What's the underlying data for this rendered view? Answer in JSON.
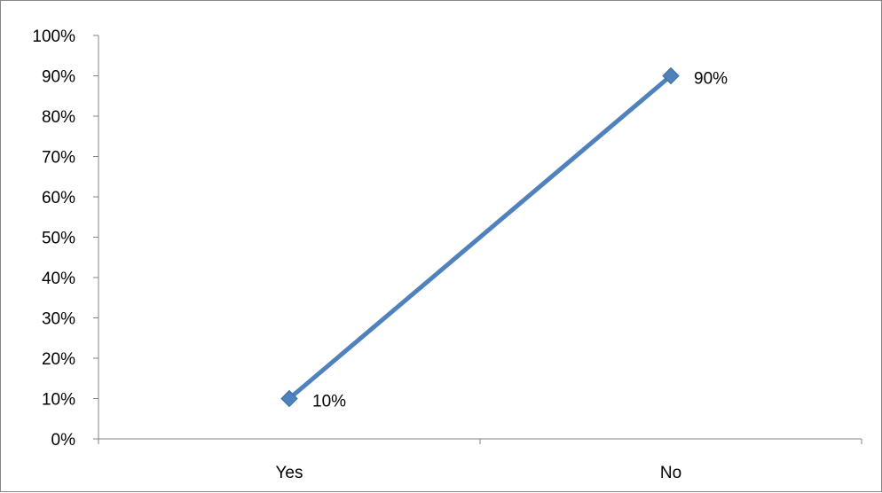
{
  "chart_data": {
    "type": "line",
    "categories": [
      "Yes",
      "No"
    ],
    "series": [
      {
        "values": [
          10,
          90
        ],
        "color": "#4f81bd",
        "marker": "diamond"
      }
    ],
    "data_labels": [
      "10%",
      "90%"
    ],
    "y_ticks": [
      "0%",
      "10%",
      "20%",
      "30%",
      "40%",
      "50%",
      "60%",
      "70%",
      "80%",
      "90%",
      "100%"
    ],
    "ylim": [
      0,
      100
    ],
    "y_unit": "%",
    "grid": false,
    "legend": "none"
  }
}
